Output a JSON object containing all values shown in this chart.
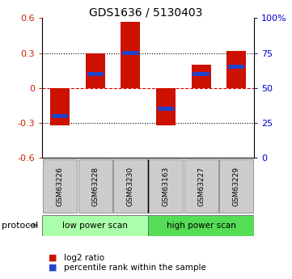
{
  "title": "GDS1636 / 5130403",
  "samples": [
    "GSM63226",
    "GSM63228",
    "GSM63230",
    "GSM63163",
    "GSM63227",
    "GSM63229"
  ],
  "log2_ratios": [
    -0.32,
    0.3,
    0.57,
    -0.32,
    0.2,
    0.32
  ],
  "percentile_ranks": [
    0.3,
    0.6,
    0.75,
    0.35,
    0.6,
    0.65
  ],
  "bar_color": "#cc1100",
  "blue_color": "#2244cc",
  "ylim": [
    -0.6,
    0.6
  ],
  "yticks_left": [
    -0.6,
    -0.3,
    0.0,
    0.3,
    0.6
  ],
  "yticks_right": [
    0,
    25,
    50,
    75,
    100
  ],
  "protocols": [
    {
      "label": "low power scan",
      "start": 0,
      "end": 3,
      "color": "#aaffaa"
    },
    {
      "label": "high power scan",
      "start": 3,
      "end": 6,
      "color": "#55dd55"
    }
  ],
  "protocol_label": "protocol",
  "legend_items": [
    {
      "color": "#cc1100",
      "label": "log2 ratio"
    },
    {
      "color": "#2244cc",
      "label": "percentile rank within the sample"
    }
  ],
  "bar_width": 0.55,
  "grid_color": "#000000",
  "zero_line_color": "#dd0000",
  "tick_label_color_left": "#cc2200",
  "tick_label_color_right": "#0000cc",
  "bg_color": "#ffffff"
}
